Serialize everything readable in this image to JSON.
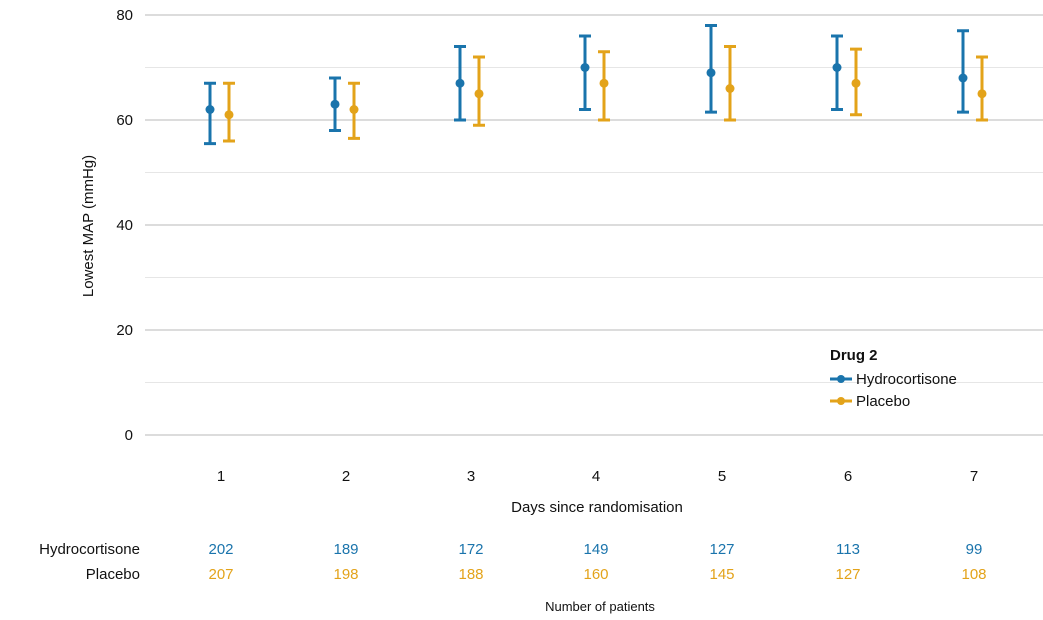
{
  "colors": {
    "hydrocortisone": "#1a74ac",
    "placebo": "#e3a31a",
    "grid_major": "#b9b9b9",
    "grid_minor": "#e6e6e6"
  },
  "chart_data": {
    "type": "errorbar",
    "xlabel": "Days since randomisation",
    "ylabel": "Lowest MAP (mmHg)",
    "ylim": [
      0,
      80
    ],
    "yticks": [
      0,
      20,
      40,
      60,
      80
    ],
    "grid": true,
    "categories": [
      "1",
      "2",
      "3",
      "4",
      "5",
      "6",
      "7"
    ],
    "legend": {
      "title": "Drug 2",
      "placement": "bottom-right"
    },
    "series": [
      {
        "name": "Hydrocortisone",
        "color": "#1a74ac",
        "values": [
          62,
          63,
          67,
          70,
          69,
          70,
          68
        ],
        "lower": [
          55.5,
          58,
          60,
          62,
          61.5,
          62,
          61.5
        ],
        "upper": [
          67,
          68,
          74,
          76,
          78,
          76,
          77
        ]
      },
      {
        "name": "Placebo",
        "color": "#e3a31a",
        "values": [
          61,
          62,
          65,
          67,
          66,
          67,
          65
        ],
        "lower": [
          56,
          56.5,
          59,
          60,
          60,
          61,
          60
        ],
        "upper": [
          67,
          67,
          72,
          73,
          74,
          73.5,
          72
        ]
      }
    ]
  },
  "risk_table": {
    "rows": [
      {
        "label": "Hydrocortisone",
        "color": "#1a74ac",
        "values": [
          "202",
          "189",
          "172",
          "149",
          "127",
          "113",
          "99"
        ]
      },
      {
        "label": "Placebo",
        "color": "#e3a31a",
        "values": [
          "207",
          "198",
          "188",
          "160",
          "145",
          "127",
          "108"
        ]
      }
    ],
    "caption": "Number of patients"
  }
}
